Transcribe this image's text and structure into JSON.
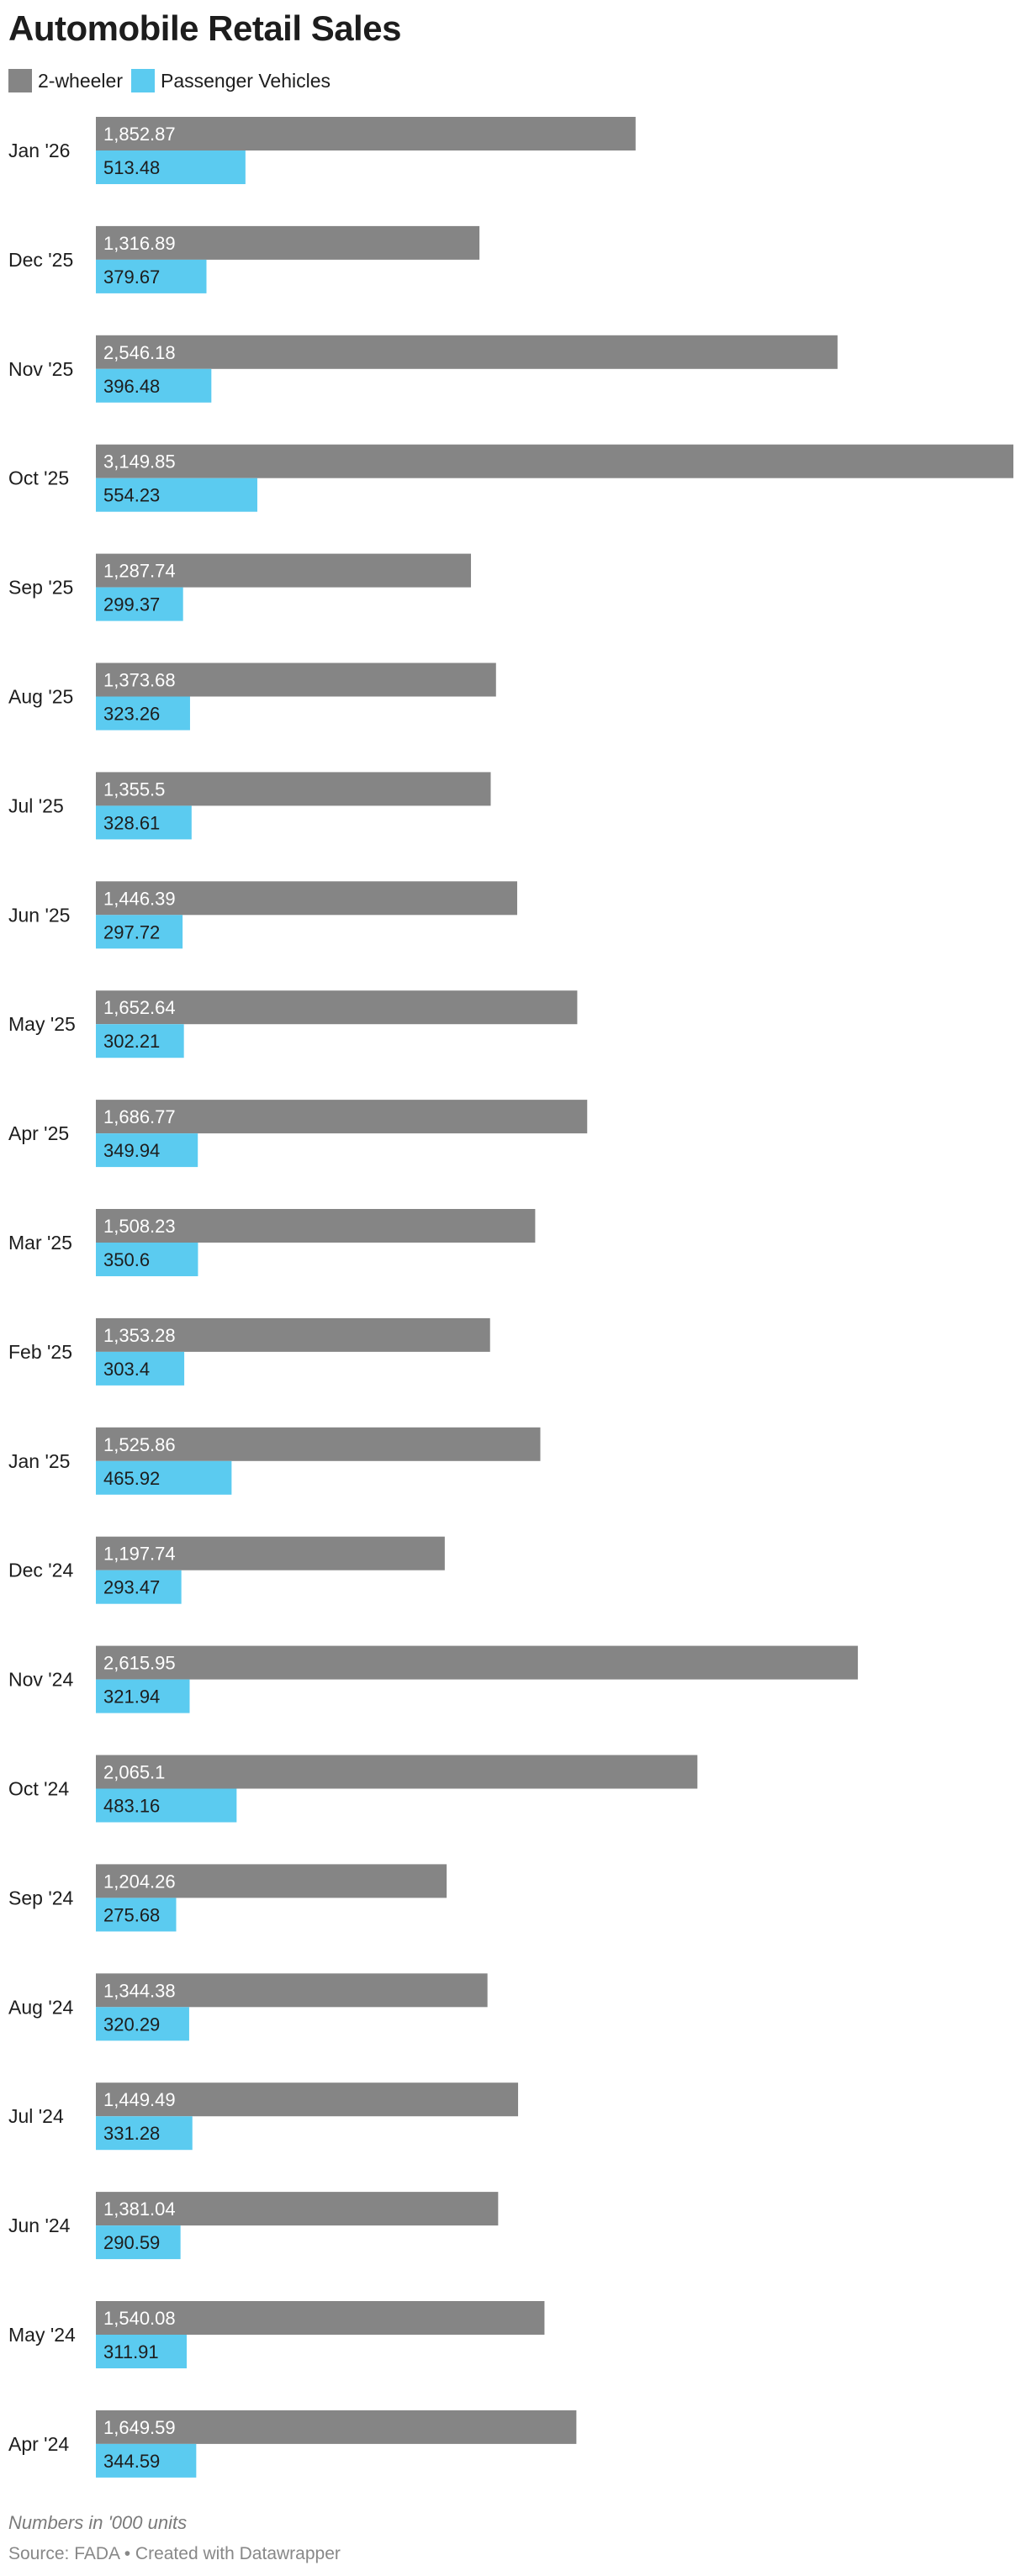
{
  "chart_data": {
    "type": "bar",
    "orientation": "horizontal",
    "title": "Automobile Retail Sales",
    "categories": [
      "Jan '26",
      "Dec '25",
      "Nov '25",
      "Oct '25",
      "Sep '25",
      "Aug '25",
      "Jul '25",
      "Jun '25",
      "May '25",
      "Apr '25",
      "Mar '25",
      "Feb '25",
      "Jan '25",
      "Dec '24",
      "Nov '24",
      "Oct '24",
      "Sep '24",
      "Aug '24",
      "Jul '24",
      "Jun '24",
      "May '24",
      "Apr '24"
    ],
    "series": [
      {
        "name": "2-wheeler",
        "color": "#858585",
        "values": [
          1852.87,
          1316.89,
          2546.18,
          3149.85,
          1287.74,
          1373.68,
          1355.5,
          1446.39,
          1652.64,
          1686.77,
          1508.23,
          1353.28,
          1525.86,
          1197.74,
          2615.95,
          2065.1,
          1204.26,
          1344.38,
          1449.49,
          1381.04,
          1540.08,
          1649.59
        ],
        "labels": [
          "1,852.87",
          "1,316.89",
          "2,546.18",
          "3,149.85",
          "1,287.74",
          "1,373.68",
          "1,355.5",
          "1,446.39",
          "1,652.64",
          "1,686.77",
          "1,508.23",
          "1,353.28",
          "1,525.86",
          "1,197.74",
          "2,615.95",
          "2,065.1",
          "1,204.26",
          "1,344.38",
          "1,449.49",
          "1,381.04",
          "1,540.08",
          "1,649.59"
        ],
        "label_color": "#ffffff"
      },
      {
        "name": "Passenger Vehicles",
        "color": "#5bcbf0",
        "values": [
          513.48,
          379.67,
          396.48,
          554.23,
          299.37,
          323.26,
          328.61,
          297.72,
          302.21,
          349.94,
          350.6,
          303.4,
          465.92,
          293.47,
          321.94,
          483.16,
          275.68,
          320.29,
          331.28,
          290.59,
          311.91,
          344.59
        ],
        "labels": [
          "513.48",
          "379.67",
          "396.48",
          "554.23",
          "299.37",
          "323.26",
          "328.61",
          "297.72",
          "302.21",
          "349.94",
          "350.6",
          "303.4",
          "465.92",
          "293.47",
          "321.94",
          "483.16",
          "275.68",
          "320.29",
          "331.28",
          "290.59",
          "311.91",
          "344.59"
        ],
        "label_color": "#1d1d1d"
      }
    ],
    "xlim": [
      0,
      3149.85
    ],
    "grid": false,
    "legend": "top-left"
  },
  "note": "Numbers in '000 units",
  "source": "Source: FADA • Created with Datawrapper"
}
